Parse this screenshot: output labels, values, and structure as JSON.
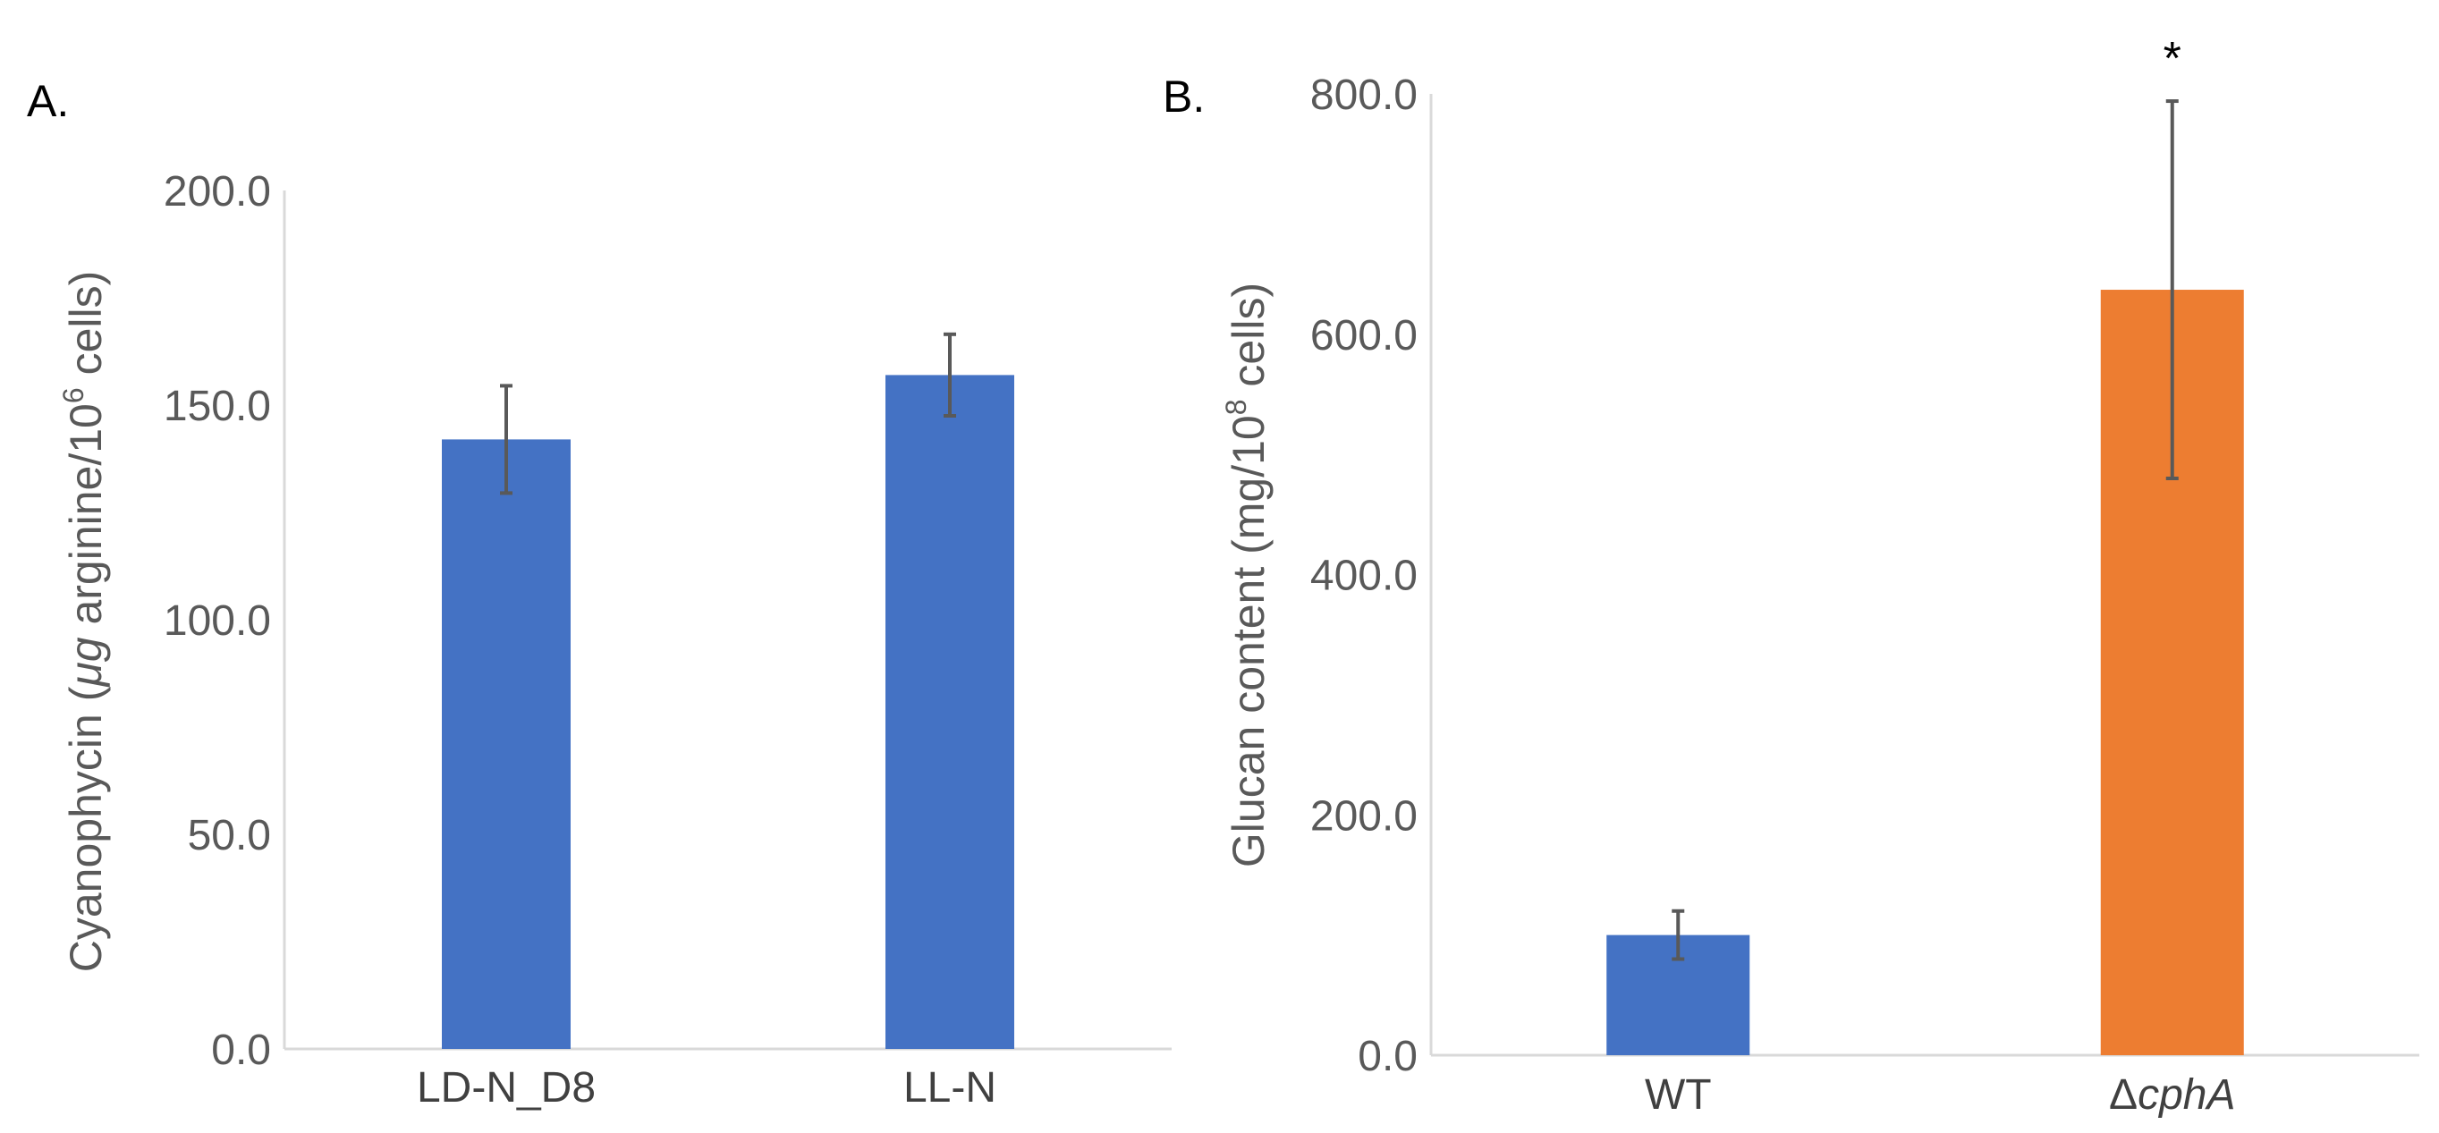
{
  "chart_data": [
    {
      "type": "bar",
      "panel_label": "A.",
      "categories": [
        "LD-N_D8",
        "LL-N"
      ],
      "values": [
        142.0,
        157.0
      ],
      "errors": [
        12.5,
        9.5
      ],
      "ylabel_parts": [
        "Cyanophycin (",
        "μg",
        " arginine/10",
        "6",
        " cells)"
      ],
      "ylim": [
        0,
        200
      ],
      "yticks": [
        "0.0",
        "50.0",
        "100.0",
        "150.0",
        "200.0"
      ],
      "colors": [
        "#4472C4",
        "#4472C4"
      ],
      "annotations": [
        "",
        ""
      ],
      "grid": false
    },
    {
      "type": "bar",
      "panel_label": "B.",
      "categories": [
        "WT",
        "ΔcphA"
      ],
      "category_parts": [
        [
          "WT",
          ""
        ],
        [
          "Δ",
          "cphA"
        ]
      ],
      "values": [
        100.0,
        637.0
      ],
      "errors": [
        20.0,
        157.0
      ],
      "ylabel_parts": [
        "Glucan content (mg/10",
        "8",
        " cells)"
      ],
      "ylim": [
        0,
        800
      ],
      "yticks": [
        "0.0",
        "200.0",
        "400.0",
        "600.0",
        "800.0"
      ],
      "colors": [
        "#4472C4",
        "#ED7D31"
      ],
      "annotations": [
        "",
        "*"
      ],
      "grid": false
    }
  ]
}
